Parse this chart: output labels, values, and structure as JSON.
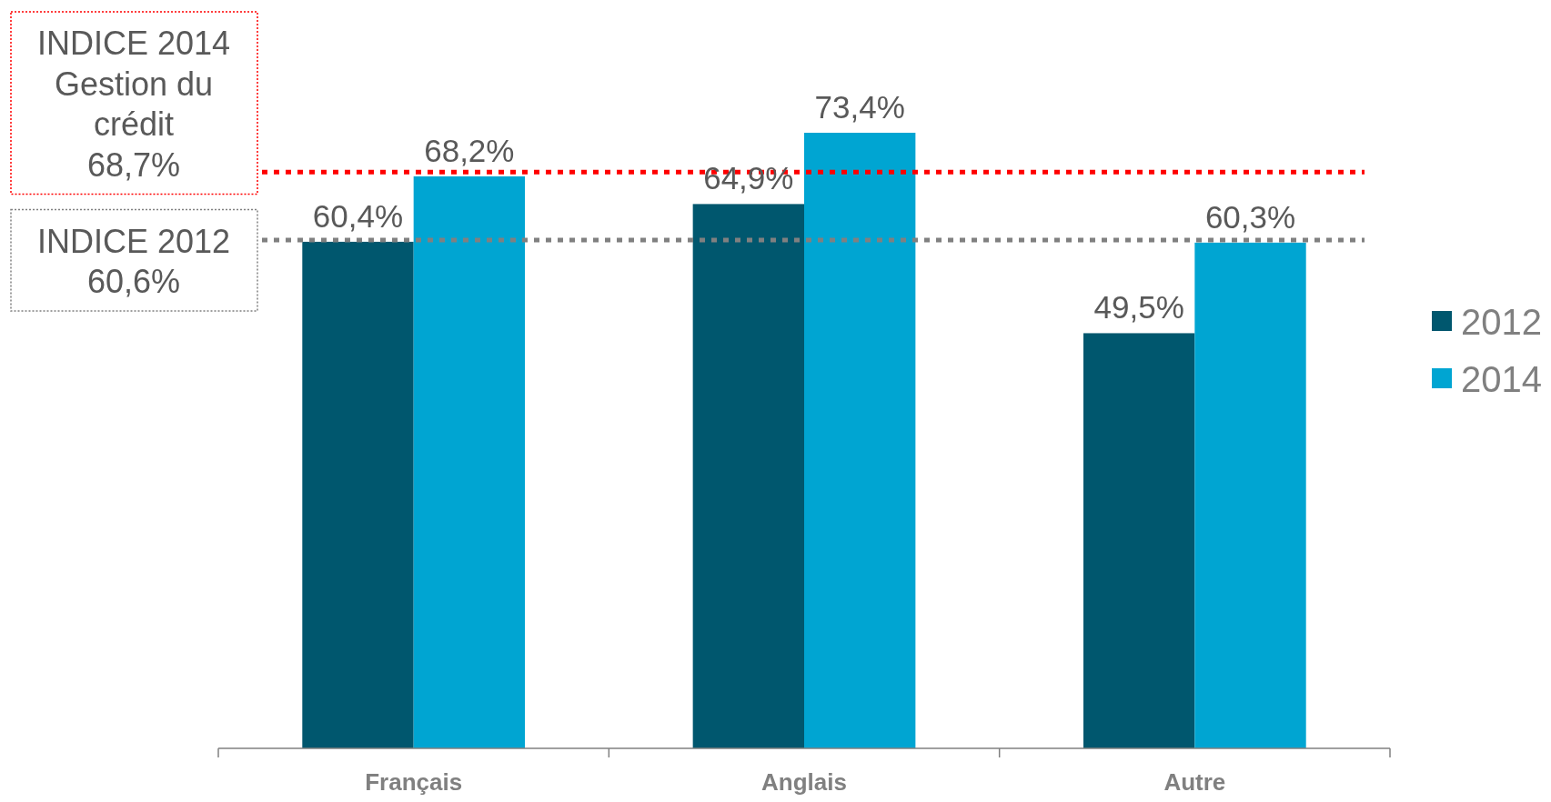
{
  "chart_data": {
    "type": "bar",
    "categories": [
      "Français",
      "Anglais",
      "Autre"
    ],
    "series": [
      {
        "name": "2012",
        "color": "#00576e",
        "values": [
          60.4,
          64.9,
          49.5
        ],
        "value_labels": [
          "60,4%",
          "64,9%",
          "49,5%"
        ]
      },
      {
        "name": "2014",
        "color": "#00a5d2",
        "values": [
          68.2,
          73.4,
          60.3
        ],
        "value_labels": [
          "68,2%",
          "73,4%",
          "60,3%"
        ]
      }
    ],
    "tick_labels": "x",
    "legend": "right",
    "ref_lines": [
      {
        "axis": "y",
        "value": 68.7,
        "label": "INDICE 2014\nGestion du\ncrédit\n68,7%",
        "color": "#ff0000",
        "line_style": "dotted"
      },
      {
        "axis": "y",
        "value": 60.6,
        "label": "INDICE 2012\n60,6%",
        "color": "#808080",
        "line_style": "dotted"
      }
    ]
  }
}
